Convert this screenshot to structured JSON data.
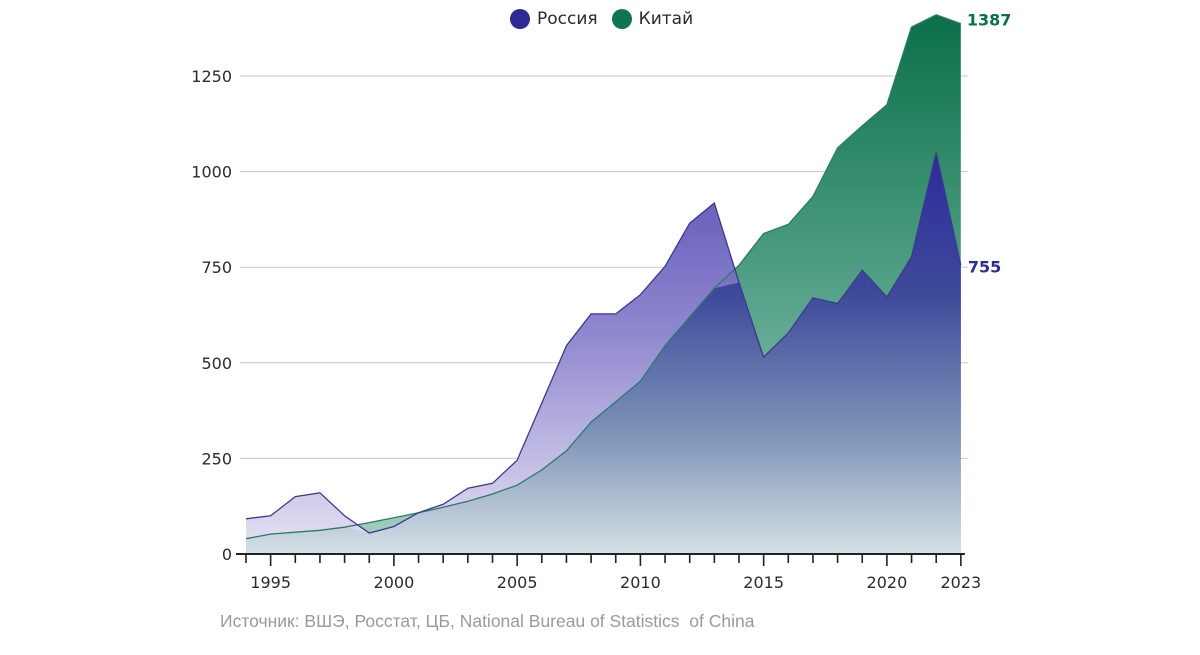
{
  "legend": [
    {
      "label": "Россия",
      "color": "#2e2a93"
    },
    {
      "label": "Китай",
      "color": "#0d7550"
    }
  ],
  "source": "Источник: ВШЭ, Росстат, ЦБ, National Bureau of Statistics  of China",
  "colors": {
    "russia_line": "#3c3a8c",
    "china_line": "#2a7b6a",
    "russia_top": "#2e2a9c",
    "china_top": "#0a7048",
    "fill_bottom": "#d5e0e6",
    "grid": "#c8c8c8",
    "axis": "#222222"
  },
  "chart_data": {
    "type": "area",
    "title": "",
    "xlabel": "",
    "ylabel": "",
    "x": [
      1994,
      1995,
      1996,
      1997,
      1998,
      1999,
      2000,
      2001,
      2002,
      2003,
      2004,
      2005,
      2006,
      2007,
      2008,
      2009,
      2010,
      2011,
      2012,
      2013,
      2014,
      2015,
      2016,
      2017,
      2018,
      2019,
      2020,
      2021,
      2022,
      2023
    ],
    "x_ticks": [
      1995,
      2000,
      2005,
      2010,
      2015,
      2020,
      2023
    ],
    "x_tick_labels": [
      "1995",
      "2000",
      "2005",
      "2010",
      "2015",
      "2020",
      "2023"
    ],
    "y_ticks": [
      0,
      250,
      500,
      750,
      1000,
      1250
    ],
    "y_tick_labels": [
      "0",
      "250",
      "500",
      "750",
      "1000",
      "1250"
    ],
    "ylim": [
      0,
      1420
    ],
    "grid": true,
    "legend_position": "top-center",
    "series": [
      {
        "name": "Китай",
        "color": "#0d7550",
        "values": [
          40,
          52,
          57,
          62,
          70,
          82,
          95,
          108,
          122,
          138,
          157,
          180,
          220,
          270,
          345,
          398,
          452,
          545,
          620,
          695,
          755,
          838,
          862,
          935,
          1062,
          1120,
          1175,
          1378,
          1410,
          1387
        ],
        "end_label": "1387"
      },
      {
        "name": "Россия",
        "color": "#2e2a93",
        "values": [
          92,
          100,
          150,
          160,
          100,
          55,
          72,
          108,
          130,
          172,
          185,
          245,
          395,
          545,
          628,
          628,
          678,
          752,
          865,
          918,
          710,
          515,
          578,
          670,
          655,
          742,
          672,
          777,
          1050,
          755
        ],
        "end_label": "755"
      }
    ]
  }
}
